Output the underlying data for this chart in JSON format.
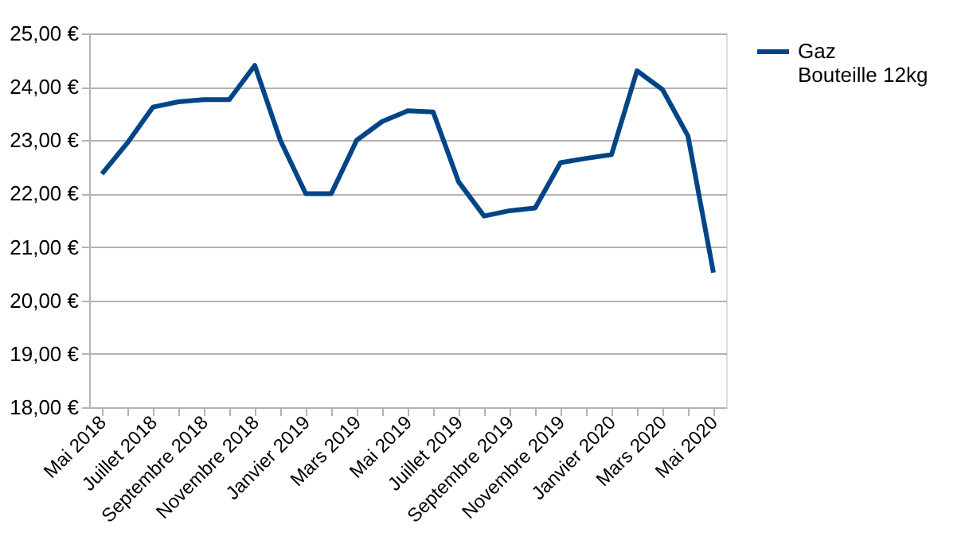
{
  "chart_data": {
    "type": "line",
    "categories": [
      "Mai 2018",
      null,
      "Juillet 2018",
      null,
      "Septembre 2018",
      null,
      "Novembre 2018",
      null,
      "Janvier 2019",
      null,
      "Mars 2019",
      null,
      "Mai 2019",
      null,
      "Juillet 2019",
      null,
      "Septembre 2019",
      null,
      "Novembre 2019",
      null,
      "Janvier 2020",
      null,
      "Mars 2020",
      null,
      "Mai 2020"
    ],
    "series": [
      {
        "name": "Gaz\nBouteille 12kg",
        "color": "#004586",
        "values": [
          22.37,
          22.95,
          23.62,
          23.72,
          23.76,
          23.76,
          24.4,
          23.0,
          22.0,
          22.0,
          23.0,
          23.35,
          23.55,
          23.53,
          22.22,
          21.58,
          21.68,
          21.73,
          22.58,
          22.66,
          22.73,
          24.3,
          23.95,
          23.08,
          20.52
        ]
      }
    ],
    "ylim": [
      18,
      25
    ],
    "yticks": [
      {
        "value": 18,
        "label": "18,00 €"
      },
      {
        "value": 19,
        "label": "19,00 €"
      },
      {
        "value": 20,
        "label": "20,00 €"
      },
      {
        "value": 21,
        "label": "21,00 €"
      },
      {
        "value": 22,
        "label": "22,00 €"
      },
      {
        "value": 23,
        "label": "23,00 €"
      },
      {
        "value": 24,
        "label": "24,00 €"
      },
      {
        "value": 25,
        "label": "25,00 €"
      }
    ],
    "grid": "y",
    "legend": "right",
    "marker": "none",
    "line_style": "solid"
  }
}
